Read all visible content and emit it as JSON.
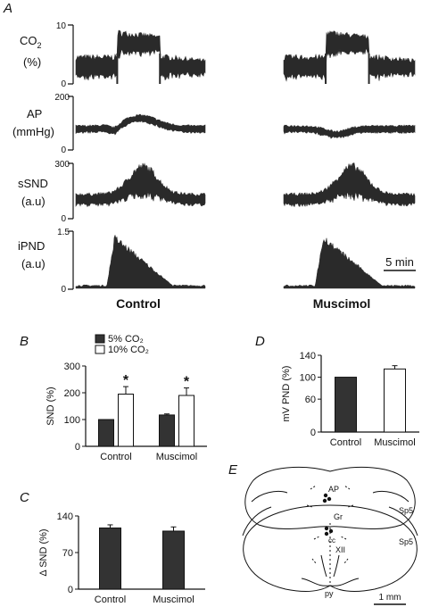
{
  "figure": {
    "panel_A": "A",
    "panel_B": "B",
    "panel_C": "C",
    "panel_D": "D",
    "panel_E": "E",
    "traces": [
      {
        "label_line1": "CO",
        "label_sub": "2",
        "label_line2": "(%)",
        "ymax": "10",
        "ymin": "0"
      },
      {
        "label_line1": "AP",
        "label_sub": "",
        "label_line2": "(mmHg)",
        "ymax": "200",
        "ymin": "0"
      },
      {
        "label_line1": "sSND",
        "label_sub": "",
        "label_line2": "(a.u)",
        "ymax": "300",
        "ymin": "0"
      },
      {
        "label_line1": "iPND",
        "label_sub": "",
        "label_line2": "(a.u)",
        "ymax": "1.5",
        "ymin": "0"
      }
    ],
    "trace_conditions": [
      "Control",
      "Muscimol"
    ],
    "time_scale": "5 min",
    "atlas_labels": {
      "ap": "AP",
      "gr": "Gr",
      "cc": "cc",
      "xii": "XII",
      "sp5_top": "Sp5",
      "sp5_bottom": "Sp5",
      "py": "py",
      "scale": "1 mm"
    }
  },
  "chart_data": [
    {
      "panel": "B",
      "type": "bar",
      "ylabel": "SND (%)",
      "ylim": [
        0,
        300
      ],
      "yticks": [
        "0",
        "100",
        "200",
        "300"
      ],
      "categories": [
        "Control",
        "Muscimol"
      ],
      "series": [
        {
          "name": "5% CO₂",
          "fill": "#333333",
          "values": [
            100,
            117
          ],
          "err": [
            0,
            4
          ]
        },
        {
          "name": "10% CO₂",
          "fill": "#ffffff",
          "values": [
            195,
            190
          ],
          "err": [
            28,
            28
          ]
        }
      ],
      "significance": [
        "*",
        "*"
      ],
      "legend_position": "top-left"
    },
    {
      "panel": "C",
      "type": "bar",
      "ylabel": "Δ SND (%)",
      "ylim": [
        0,
        140
      ],
      "yticks": [
        "0",
        "70",
        "140"
      ],
      "categories": [
        "Control",
        "Muscimol"
      ],
      "series": [
        {
          "name": "",
          "fill": "#333333",
          "values": [
            117,
            111
          ],
          "err": [
            6,
            8
          ]
        }
      ]
    },
    {
      "panel": "D",
      "type": "bar",
      "ylabel": "mV PND (%)",
      "ylim": [
        0,
        140
      ],
      "yticks": [
        "0",
        "60",
        "100",
        "140"
      ],
      "categories": [
        "Control",
        "Muscimol"
      ],
      "series": [
        {
          "name": "",
          "fill": "#333333",
          "values": [
            100,
            null
          ],
          "err": [
            0,
            null
          ]
        },
        {
          "name": "",
          "fill": "#ffffff",
          "values": [
            null,
            115
          ],
          "err": [
            null,
            6
          ]
        }
      ]
    }
  ]
}
